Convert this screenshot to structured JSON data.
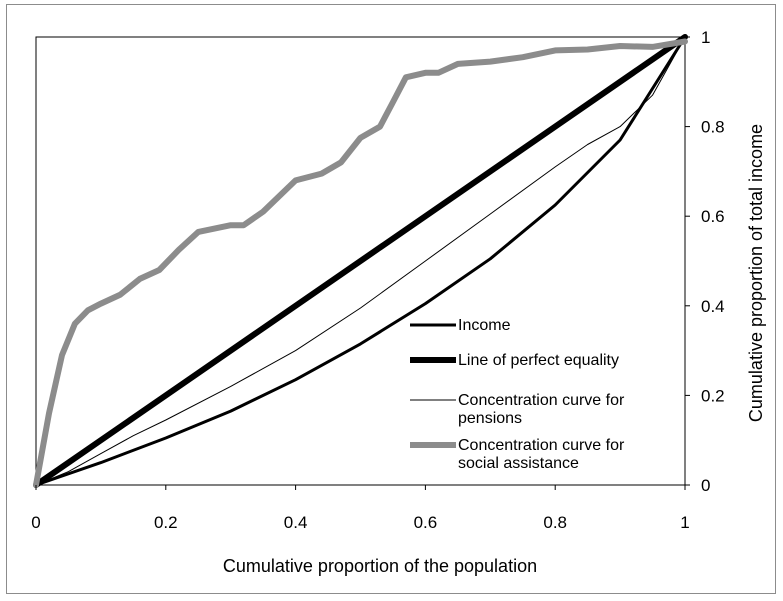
{
  "chart_data": {
    "type": "line",
    "title": "",
    "xlabel": "Cumulative proportion of the population",
    "ylabel": "Cumulative proportion of total income",
    "xlim": [
      0,
      1
    ],
    "ylim": [
      0,
      1
    ],
    "x_ticks": [
      "0",
      "0.2",
      "0.4",
      "0.6",
      "0.8",
      "1"
    ],
    "y_ticks": [
      "0",
      "0.2",
      "0.4",
      "0.6",
      "0.8",
      "1"
    ],
    "grid": false,
    "legend_position": "center-right",
    "series": [
      {
        "name": "Income",
        "color": "#000000",
        "x": [
          0,
          0.1,
          0.2,
          0.3,
          0.4,
          0.5,
          0.6,
          0.7,
          0.8,
          0.9,
          1.0
        ],
        "y": [
          0,
          0.05,
          0.105,
          0.165,
          0.235,
          0.315,
          0.405,
          0.505,
          0.625,
          0.77,
          1.0
        ]
      },
      {
        "name": "Line of perfect equality",
        "color": "#000000",
        "x": [
          0,
          1
        ],
        "y": [
          0,
          1
        ]
      },
      {
        "name": "Concentration curve for pensions",
        "color": "#000000",
        "x": [
          0,
          0.05,
          0.1,
          0.15,
          0.2,
          0.3,
          0.4,
          0.5,
          0.6,
          0.7,
          0.8,
          0.85,
          0.9,
          0.95,
          1.0
        ],
        "y": [
          0,
          0.03,
          0.07,
          0.11,
          0.145,
          0.22,
          0.3,
          0.395,
          0.5,
          0.605,
          0.71,
          0.76,
          0.8,
          0.87,
          1.0
        ]
      },
      {
        "name": "Concentration curve for social assistance",
        "color": "#8c8c8c",
        "x": [
          0,
          0.02,
          0.04,
          0.06,
          0.08,
          0.1,
          0.13,
          0.16,
          0.19,
          0.22,
          0.25,
          0.3,
          0.32,
          0.35,
          0.4,
          0.44,
          0.47,
          0.5,
          0.53,
          0.55,
          0.57,
          0.6,
          0.62,
          0.65,
          0.7,
          0.75,
          0.8,
          0.85,
          0.9,
          0.95,
          1.0
        ],
        "y": [
          0,
          0.16,
          0.29,
          0.36,
          0.39,
          0.405,
          0.425,
          0.46,
          0.48,
          0.525,
          0.565,
          0.58,
          0.58,
          0.61,
          0.68,
          0.695,
          0.72,
          0.775,
          0.8,
          0.855,
          0.91,
          0.92,
          0.92,
          0.94,
          0.945,
          0.955,
          0.97,
          0.972,
          0.98,
          0.978,
          0.99
        ]
      }
    ]
  }
}
